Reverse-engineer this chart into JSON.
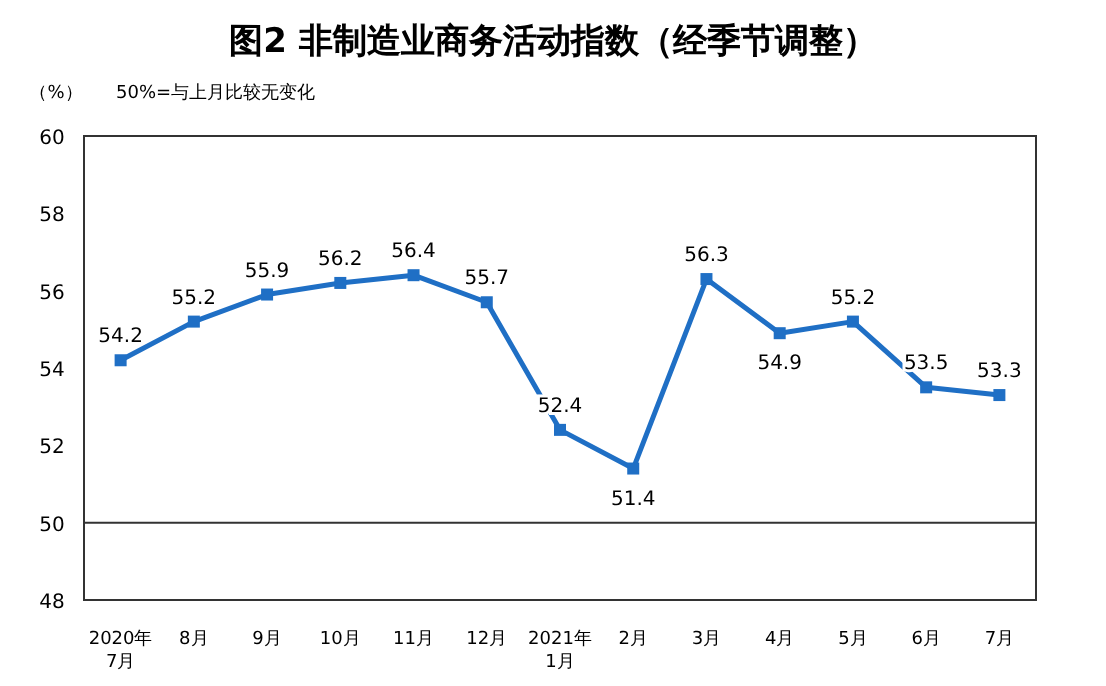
{
  "chart_data": {
    "type": "line",
    "title": "图2  非制造业商务活动指数（经季节调整）",
    "ylabel": "（%）",
    "annotations": [
      "50%=与上月比较无变化"
    ],
    "categories": [
      "2020年\n7月",
      "8月",
      "9月",
      "10月",
      "11月",
      "12月",
      "2021年\n1月",
      "2月",
      "3月",
      "4月",
      "5月",
      "6月",
      "7月"
    ],
    "series": [
      {
        "color": "#1f6fc5",
        "values": [
          54.2,
          55.2,
          55.9,
          56.2,
          56.4,
          55.7,
          52.4,
          51.4,
          56.3,
          54.9,
          55.2,
          53.5,
          53.3
        ]
      }
    ],
    "ylim": [
      48,
      60
    ],
    "yticks": [
      48,
      50,
      52,
      54,
      56,
      58,
      60
    ],
    "ref_lines": [
      {
        "axis": "y",
        "value": 50,
        "color": "#333333"
      }
    ],
    "data_labels": true,
    "marker": "square",
    "line_style": "solid"
  }
}
